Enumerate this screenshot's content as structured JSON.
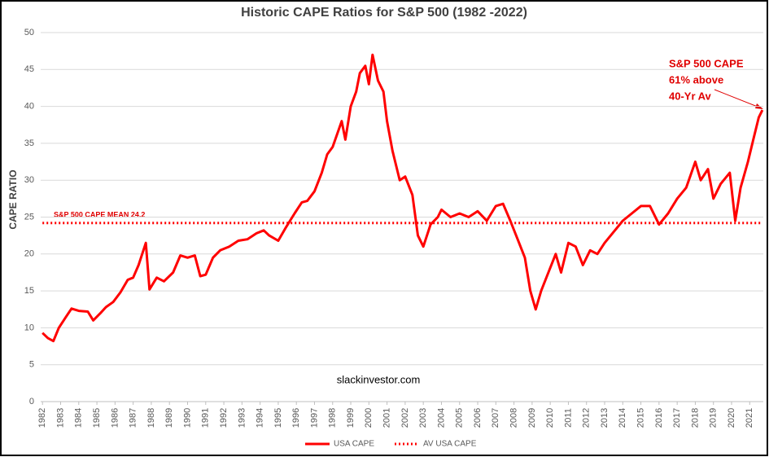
{
  "chart_data": {
    "type": "line",
    "title": "Historic CAPE Ratios for S&P 500 (1982 -2022)",
    "y_label": "CAPE RATIO",
    "annotations": [
      "S&P 500 CAPE MEAN 24.2",
      "S&P 500 CAPE",
      "61% above",
      "40-Yr Av",
      "slackinvestor.com"
    ],
    "x": [
      1982.0,
      1982.3,
      1982.6,
      1982.9,
      1983.3,
      1983.6,
      1984.0,
      1984.5,
      1984.8,
      1985.2,
      1985.5,
      1985.9,
      1986.3,
      1986.7,
      1987.0,
      1987.3,
      1987.7,
      1987.9,
      1988.3,
      1988.7,
      1989.2,
      1989.6,
      1990.0,
      1990.4,
      1990.7,
      1991.0,
      1991.4,
      1991.8,
      1992.3,
      1992.8,
      1993.3,
      1993.8,
      1994.2,
      1994.5,
      1995.0,
      1995.4,
      1995.9,
      1996.3,
      1996.6,
      1997.0,
      1997.4,
      1997.7,
      1998.0,
      1998.5,
      1998.7,
      1999.0,
      1999.3,
      1999.5,
      1999.8,
      2000.0,
      2000.2,
      2000.5,
      2000.8,
      2001.0,
      2001.3,
      2001.7,
      2002.0,
      2002.4,
      2002.7,
      2003.0,
      2003.4,
      2003.8,
      2004.0,
      2004.5,
      2005.0,
      2005.5,
      2006.0,
      2006.5,
      2007.0,
      2007.4,
      2007.8,
      2008.2,
      2008.6,
      2008.9,
      2009.2,
      2009.5,
      2009.9,
      2010.3,
      2010.6,
      2011.0,
      2011.4,
      2011.8,
      2012.2,
      2012.6,
      2013.0,
      2013.5,
      2014.0,
      2014.5,
      2015.0,
      2015.5,
      2016.0,
      2016.5,
      2017.0,
      2017.5,
      2018.0,
      2018.3,
      2018.7,
      2019.0,
      2019.4,
      2019.9,
      2020.2,
      2020.5,
      2020.9,
      2021.2,
      2021.5,
      2021.7
    ],
    "series": [
      {
        "name": "USA CAPE",
        "color": "#ff0000",
        "style": "solid",
        "values": [
          9.3,
          8.6,
          8.2,
          10.0,
          11.5,
          12.6,
          12.3,
          12.2,
          11.0,
          12.0,
          12.8,
          13.5,
          14.8,
          16.5,
          16.8,
          18.5,
          21.5,
          15.2,
          16.8,
          16.3,
          17.5,
          19.8,
          19.5,
          19.8,
          17.0,
          17.2,
          19.5,
          20.5,
          21.0,
          21.8,
          22.0,
          22.8,
          23.2,
          22.5,
          21.8,
          23.5,
          25.5,
          27.0,
          27.2,
          28.5,
          31.0,
          33.5,
          34.5,
          38.0,
          35.5,
          40.0,
          42.0,
          44.5,
          45.5,
          43.0,
          47.0,
          43.5,
          42.0,
          38.0,
          34.0,
          30.0,
          30.5,
          28.0,
          22.5,
          21.0,
          24.0,
          25.0,
          26.0,
          25.0,
          25.5,
          25.0,
          25.8,
          24.5,
          26.5,
          26.8,
          24.5,
          22.0,
          19.5,
          15.0,
          12.5,
          15.0,
          17.5,
          20.0,
          17.5,
          21.5,
          21.0,
          18.5,
          20.5,
          20.0,
          21.5,
          23.0,
          24.5,
          25.5,
          26.5,
          26.5,
          24.0,
          25.5,
          27.5,
          29.0,
          32.5,
          30.0,
          31.5,
          27.5,
          29.5,
          31.0,
          24.5,
          29.0,
          32.5,
          35.5,
          38.5,
          39.5
        ]
      },
      {
        "name": "AV USA CAPE",
        "color": "#ff0000",
        "style": "dotted",
        "x": [
          1982.0,
          2021.7
        ],
        "values": [
          24.2,
          24.2
        ]
      }
    ],
    "xlim": [
      1981.9,
      2021.75
    ],
    "xticks": [
      1982,
      1983,
      1984,
      1985,
      1986,
      1987,
      1988,
      1989,
      1990,
      1991,
      1992,
      1993,
      1994,
      1995,
      1996,
      1997,
      1998,
      1999,
      2000,
      2001,
      2002,
      2003,
      2004,
      2005,
      2006,
      2007,
      2008,
      2009,
      2010,
      2011,
      2012,
      2013,
      2014,
      2015,
      2016,
      2017,
      2018,
      2019,
      2020,
      2021
    ],
    "ylim": [
      0,
      50
    ],
    "yticks": [
      0,
      5,
      10,
      15,
      20,
      25,
      30,
      35,
      40,
      45,
      50
    ],
    "grid": true,
    "legend": "bottom"
  }
}
